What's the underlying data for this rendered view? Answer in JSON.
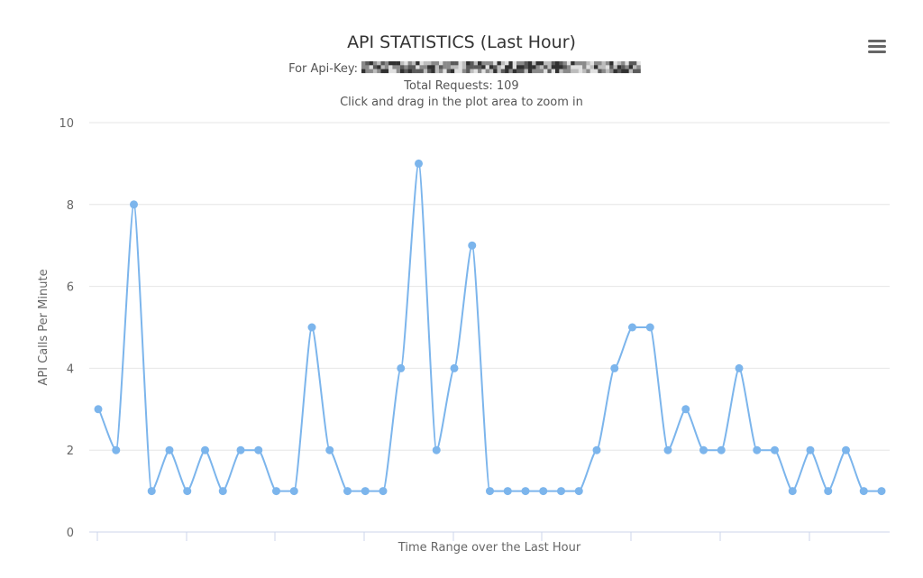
{
  "chart_data": {
    "type": "line",
    "title": "API STATISTICS (Last Hour)",
    "subtitle_lines": [
      "For Api-Key:",
      "Total Requests: 109",
      "Click and drag in the plot area to zoom in"
    ],
    "xlabel": "Time Range over the Last Hour",
    "ylabel": "API Calls Per Minute",
    "ylim": [
      0,
      10
    ],
    "yticks": [
      0,
      2,
      4,
      6,
      8,
      10
    ],
    "grid": true,
    "legend": "none",
    "line_color": "#7cb5ec",
    "series": [
      {
        "values": [
          3,
          2,
          8,
          1,
          2,
          1,
          2,
          1,
          2,
          2,
          1,
          1,
          5,
          2,
          1,
          1,
          1,
          4,
          9,
          2,
          4,
          7,
          1,
          1,
          1,
          1,
          1,
          1,
          2,
          4,
          5,
          5,
          2,
          3,
          2,
          2,
          4,
          2,
          2,
          1,
          2,
          1,
          2,
          1,
          1
        ]
      }
    ]
  },
  "menu": {
    "icon": "hamburger-menu-icon"
  }
}
